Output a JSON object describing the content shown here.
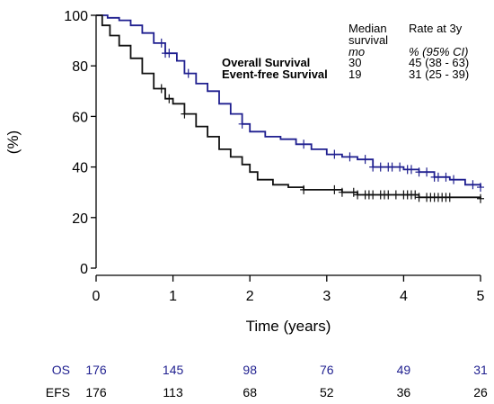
{
  "chart_data": {
    "type": "line",
    "subtype": "kaplan-meier",
    "xlabel": "Time (years)",
    "ylabel": "(%)",
    "xlim": [
      0,
      5
    ],
    "ylim": [
      0,
      100
    ],
    "xticks": [
      0,
      1,
      2,
      3,
      4,
      5
    ],
    "yticks": [
      0,
      20,
      40,
      60,
      80,
      100
    ],
    "grid": false,
    "legend_placement": "top-right",
    "legend": {
      "header_median": "Median",
      "header_median_line2": "survival",
      "header_median_unit": "mo",
      "header_rate": "Rate at 3y",
      "header_rate_unit": "% (95% CI)",
      "rows": [
        {
          "label": "Overall Survival",
          "median": "30",
          "rate": "45 (38 - 63)"
        },
        {
          "label": "Event-free Survival",
          "median": "19",
          "rate": "31 (25 - 39)"
        }
      ]
    },
    "series": [
      {
        "key": "OS",
        "color": "#1f1f8f",
        "points": [
          [
            0,
            100
          ],
          [
            0.15,
            99
          ],
          [
            0.3,
            98
          ],
          [
            0.45,
            96
          ],
          [
            0.6,
            93
          ],
          [
            0.75,
            89
          ],
          [
            0.9,
            85
          ],
          [
            1.05,
            82
          ],
          [
            1.15,
            77
          ],
          [
            1.3,
            73
          ],
          [
            1.45,
            70
          ],
          [
            1.6,
            65
          ],
          [
            1.75,
            61
          ],
          [
            1.9,
            57
          ],
          [
            2.0,
            54
          ],
          [
            2.2,
            52
          ],
          [
            2.4,
            51
          ],
          [
            2.6,
            49
          ],
          [
            2.8,
            47
          ],
          [
            3.0,
            45
          ],
          [
            3.2,
            44
          ],
          [
            3.4,
            43
          ],
          [
            3.6,
            40
          ],
          [
            3.8,
            40
          ],
          [
            4.0,
            39
          ],
          [
            4.2,
            38
          ],
          [
            4.4,
            36
          ],
          [
            4.6,
            35
          ],
          [
            4.8,
            33
          ],
          [
            5.0,
            32
          ]
        ],
        "censor": [
          0.85,
          0.9,
          0.95,
          1.2,
          1.9,
          2.7,
          3.1,
          3.3,
          3.5,
          3.6,
          3.7,
          3.8,
          3.85,
          3.95,
          4.05,
          4.1,
          4.2,
          4.3,
          4.4,
          4.45,
          4.55,
          4.65,
          4.9,
          5.0
        ]
      },
      {
        "key": "EFS",
        "color": "#111111",
        "points": [
          [
            0,
            100
          ],
          [
            0.08,
            96
          ],
          [
            0.18,
            92
          ],
          [
            0.3,
            88
          ],
          [
            0.45,
            83
          ],
          [
            0.6,
            77
          ],
          [
            0.75,
            71
          ],
          [
            0.9,
            67
          ],
          [
            1.0,
            65
          ],
          [
            1.15,
            61
          ],
          [
            1.3,
            56
          ],
          [
            1.45,
            52
          ],
          [
            1.6,
            47
          ],
          [
            1.75,
            44
          ],
          [
            1.9,
            41
          ],
          [
            2.0,
            38
          ],
          [
            2.1,
            35
          ],
          [
            2.3,
            33
          ],
          [
            2.5,
            32
          ],
          [
            2.7,
            31
          ],
          [
            3.0,
            31
          ],
          [
            3.2,
            30
          ],
          [
            3.4,
            29
          ],
          [
            3.8,
            29
          ],
          [
            4.2,
            28
          ],
          [
            5.0,
            27.5
          ]
        ],
        "censor": [
          0.85,
          0.95,
          1.15,
          2.7,
          3.1,
          3.2,
          3.35,
          3.4,
          3.5,
          3.55,
          3.6,
          3.7,
          3.75,
          3.8,
          3.9,
          4.0,
          4.05,
          4.1,
          4.15,
          4.2,
          4.3,
          4.35,
          4.4,
          4.45,
          4.5,
          4.55,
          4.6,
          5.0
        ]
      }
    ]
  },
  "risk_table": {
    "rows": [
      {
        "label": "OS",
        "color": "#1f1f8f",
        "values": [
          "176",
          "145",
          "98",
          "76",
          "49",
          "31"
        ]
      },
      {
        "label": "EFS",
        "color": "#000000",
        "values": [
          "176",
          "113",
          "68",
          "52",
          "36",
          "26"
        ]
      }
    ]
  }
}
